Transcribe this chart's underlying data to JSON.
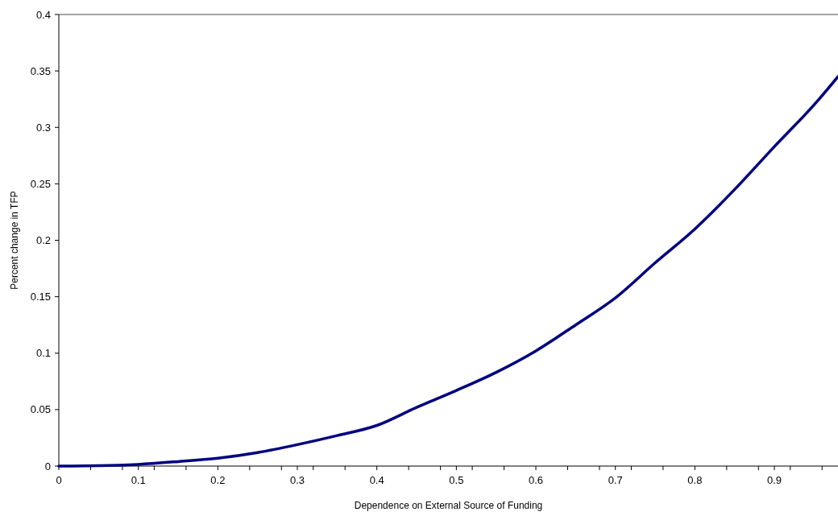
{
  "chart_data": {
    "type": "line",
    "xlabel": "Dependence on External Source of Funding",
    "ylabel": "Percent change in TFP",
    "x": [
      0,
      0.05,
      0.1,
      0.15,
      0.2,
      0.25,
      0.3,
      0.35,
      0.4,
      0.45,
      0.5,
      0.55,
      0.6,
      0.65,
      0.7,
      0.75,
      0.8,
      0.85,
      0.9,
      0.95,
      0.98
    ],
    "series": [
      {
        "color": "#000080",
        "values": [
          0,
          0.0003,
          0.0015,
          0.004,
          0.007,
          0.012,
          0.019,
          0.027,
          0.036,
          0.052,
          0.067,
          0.083,
          0.102,
          0.125,
          0.149,
          0.18,
          0.21,
          0.245,
          0.283,
          0.32,
          0.345
        ]
      }
    ],
    "xlim": [
      0,
      0.98
    ],
    "xticks": [
      0,
      {
        "value": 0.04,
        "label": null
      },
      {
        "value": 0.08,
        "label": null
      },
      0.1,
      {
        "value": 0.12,
        "label": null
      },
      {
        "value": 0.16,
        "label": null
      },
      0.2,
      {
        "value": 0.24,
        "label": null
      },
      {
        "value": 0.28,
        "label": null
      },
      0.3,
      {
        "value": 0.32,
        "label": null
      },
      {
        "value": 0.36,
        "label": null
      },
      0.4,
      {
        "value": 0.44,
        "label": null
      },
      {
        "value": 0.48,
        "label": null
      },
      0.5,
      {
        "value": 0.52,
        "label": null
      },
      {
        "value": 0.56,
        "label": null
      },
      0.6,
      {
        "value": 0.64,
        "label": null
      },
      {
        "value": 0.68,
        "label": null
      },
      0.7,
      {
        "value": 0.72,
        "label": null
      },
      {
        "value": 0.76,
        "label": null
      },
      0.8,
      {
        "value": 0.84,
        "label": null
      },
      {
        "value": 0.88,
        "label": null
      },
      0.9,
      {
        "value": 0.92,
        "label": null
      },
      {
        "value": 0.96,
        "label": null
      }
    ],
    "ylim": [
      0,
      0.4
    ],
    "yticks": [
      0,
      0.05,
      0.1,
      0.15,
      0.2,
      0.25,
      0.3,
      0.35,
      0.4
    ],
    "grid": false,
    "marker": "none",
    "line_style": "solid"
  }
}
